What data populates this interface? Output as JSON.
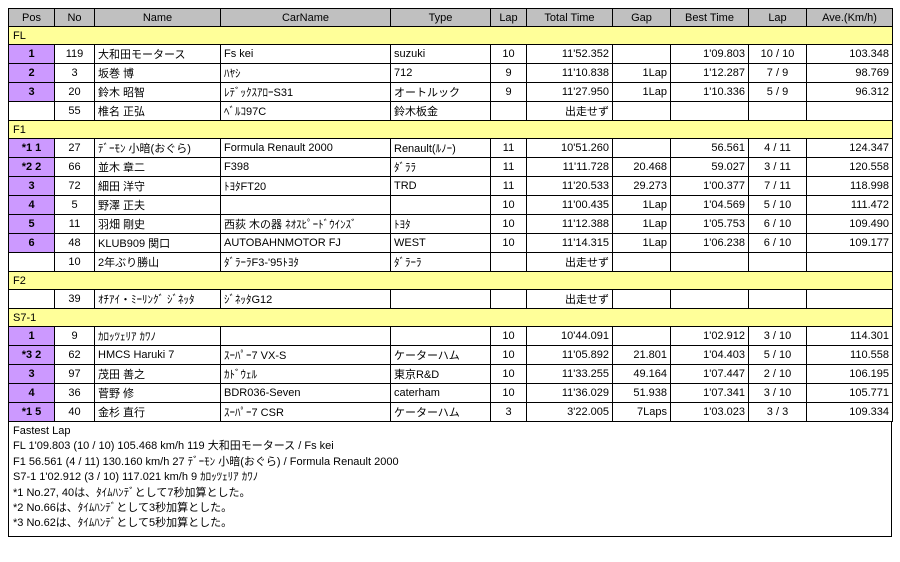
{
  "columns": [
    "Pos",
    "No",
    "Name",
    "CarName",
    "Type",
    "Lap",
    "Total Time",
    "Gap",
    "Best Time",
    "Lap",
    "Ave.(Km/h)"
  ],
  "classes": [
    {
      "name": "FL",
      "rows": [
        {
          "pos": "1",
          "hl": true,
          "no": "119",
          "name": "大和田モータース",
          "car": "Fs kei",
          "type": "suzuki",
          "lap": "10",
          "tt": "11'52.352",
          "gap": "",
          "bt": "1'09.803",
          "lap2": "10 / 10",
          "ave": "103.348"
        },
        {
          "pos": "2",
          "hl": true,
          "no": "3",
          "name": "坂巻 博",
          "car": "ﾊﾔｼ",
          "type": "712",
          "lap": "9",
          "tt": "11'10.838",
          "gap": "1Lap",
          "bt": "1'12.287",
          "lap2": "7 / 9",
          "ave": "98.769"
        },
        {
          "pos": "3",
          "hl": true,
          "no": "20",
          "name": "鈴木 昭智",
          "car": "ﾚﾃﾞｯｸｽｱﾛｰS31",
          "type": "オートルック",
          "lap": "9",
          "tt": "11'27.950",
          "gap": "1Lap",
          "bt": "1'10.336",
          "lap2": "5 / 9",
          "ave": "96.312"
        },
        {
          "pos": "",
          "hl": false,
          "no": "55",
          "name": "椎名 正弘",
          "car": "ﾍﾞﾙｺ97C",
          "type": "鈴木板金",
          "lap": "",
          "tt": "出走せず",
          "gap": "",
          "bt": "",
          "lap2": "",
          "ave": ""
        }
      ]
    },
    {
      "name": "F1",
      "rows": [
        {
          "pos": "*1  1",
          "hl": true,
          "no": "27",
          "name": "ﾃﾞｰﾓﾝ 小暗(おぐら)",
          "car": "Formula Renault 2000",
          "type": "Renault(ﾙﾉｰ)",
          "lap": "11",
          "tt": "10'51.260",
          "gap": "",
          "bt": "56.561",
          "lap2": "4 / 11",
          "ave": "124.347"
        },
        {
          "pos": "*2  2",
          "hl": true,
          "no": "66",
          "name": "並木 章二",
          "car": "F398",
          "type": "ﾀﾞﾗﾗ",
          "lap": "11",
          "tt": "11'11.728",
          "gap": "20.468",
          "bt": "59.027",
          "lap2": "3 / 11",
          "ave": "120.558"
        },
        {
          "pos": "3",
          "hl": true,
          "no": "72",
          "name": "細田 洋守",
          "car": "ﾄﾖﾀFT20",
          "type": "TRD",
          "lap": "11",
          "tt": "11'20.533",
          "gap": "29.273",
          "bt": "1'00.377",
          "lap2": "7 / 11",
          "ave": "118.998"
        },
        {
          "pos": "4",
          "hl": true,
          "no": "5",
          "name": "野澤 正夫",
          "car": "",
          "type": "",
          "lap": "10",
          "tt": "11'00.435",
          "gap": "1Lap",
          "bt": "1'04.569",
          "lap2": "5 / 10",
          "ave": "111.472"
        },
        {
          "pos": "5",
          "hl": true,
          "no": "11",
          "name": "羽畑 剛史",
          "car": "西荻 木の器 ﾈｵｽﾋﾟｰﾄﾞｳｲﾝｽﾞ",
          "type": "ﾄﾖﾀ",
          "lap": "10",
          "tt": "11'12.388",
          "gap": "1Lap",
          "bt": "1'05.753",
          "lap2": "6 / 10",
          "ave": "109.490"
        },
        {
          "pos": "6",
          "hl": true,
          "no": "48",
          "name": "KLUB909 関口",
          "car": "AUTOBAHNMOTOR FJ",
          "type": "WEST",
          "lap": "10",
          "tt": "11'14.315",
          "gap": "1Lap",
          "bt": "1'06.238",
          "lap2": "6 / 10",
          "ave": "109.177"
        },
        {
          "pos": "",
          "hl": false,
          "no": "10",
          "name": "2年ぶり勝山",
          "car": "ﾀﾞﾗｰﾗF3-'95ﾄﾖﾀ",
          "type": "ﾀﾞﾗｰﾗ",
          "lap": "",
          "tt": "出走せず",
          "gap": "",
          "bt": "",
          "lap2": "",
          "ave": ""
        }
      ]
    },
    {
      "name": "F2",
      "rows": [
        {
          "pos": "",
          "hl": false,
          "no": "39",
          "name": "ｵﾁｱｲ・ﾐｰﾘﾝｸﾞ ｼﾞﾈｯﾀ",
          "car": "ｼﾞﾈｯﾀG12",
          "type": "",
          "lap": "",
          "tt": "出走せず",
          "gap": "",
          "bt": "",
          "lap2": "",
          "ave": ""
        }
      ]
    },
    {
      "name": "S7-1",
      "rows": [
        {
          "pos": "1",
          "hl": true,
          "no": "9",
          "name": "ｶﾛｯﾂｪﾘｱ ｶﾜﾉ",
          "car": "",
          "type": "",
          "lap": "10",
          "tt": "10'44.091",
          "gap": "",
          "bt": "1'02.912",
          "lap2": "3 / 10",
          "ave": "114.301"
        },
        {
          "pos": "*3  2",
          "hl": true,
          "no": "62",
          "name": "HMCS Haruki 7",
          "car": "ｽｰﾊﾟｰ7 VX-S",
          "type": "ケーターハム",
          "lap": "10",
          "tt": "11'05.892",
          "gap": "21.801",
          "bt": "1'04.403",
          "lap2": "5 / 10",
          "ave": "110.558"
        },
        {
          "pos": "3",
          "hl": true,
          "no": "97",
          "name": "茂田 善之",
          "car": "ｶﾄﾞｳｪﾙ",
          "type": "東京R&D",
          "lap": "10",
          "tt": "11'33.255",
          "gap": "49.164",
          "bt": "1'07.447",
          "lap2": "2 / 10",
          "ave": "106.195"
        },
        {
          "pos": "4",
          "hl": true,
          "no": "36",
          "name": "菅野 修",
          "car": "BDR036-Seven",
          "type": "caterham",
          "lap": "10",
          "tt": "11'36.029",
          "gap": "51.938",
          "bt": "1'07.341",
          "lap2": "3 / 10",
          "ave": "105.771"
        },
        {
          "pos": "*1  5",
          "hl": true,
          "no": "40",
          "name": "金杉 直行",
          "car": "ｽｰﾊﾟｰ7 CSR",
          "type": "ケーターハム",
          "lap": "3",
          "tt": "3'22.005",
          "gap": "7Laps",
          "bt": "1'03.023",
          "lap2": "3 / 3",
          "ave": "109.334"
        }
      ]
    }
  ],
  "footer": {
    "title": "Fastest Lap",
    "lines": [
      "FL 1'09.803 (10 / 10) 105.468 km/h 119 大和田モータース / Fs kei",
      "F1 56.561 (4 / 11) 130.160 km/h 27 ﾃﾞｰﾓﾝ 小暗(おぐら) / Formula Renault 2000",
      "S7-1 1'02.912 (3 / 10) 117.021 km/h 9 ｶﾛｯﾂｪﾘｱ ｶﾜﾉ"
    ],
    "notes": [
      "*1 No.27, 40は、ﾀｲﾑﾊﾝﾃﾞとして7秒加算とした。",
      "*2 No.66は、ﾀｲﾑﾊﾝﾃﾞとして3秒加算とした。",
      "*3 No.62は、ﾀｲﾑﾊﾝﾃﾞとして5秒加算とした。"
    ]
  },
  "style": {
    "header_bg": "#c0c0c0",
    "class_bg": "#ffff99",
    "pos_bg": "#cc99ff",
    "border": "#000000",
    "font_size": 11
  }
}
